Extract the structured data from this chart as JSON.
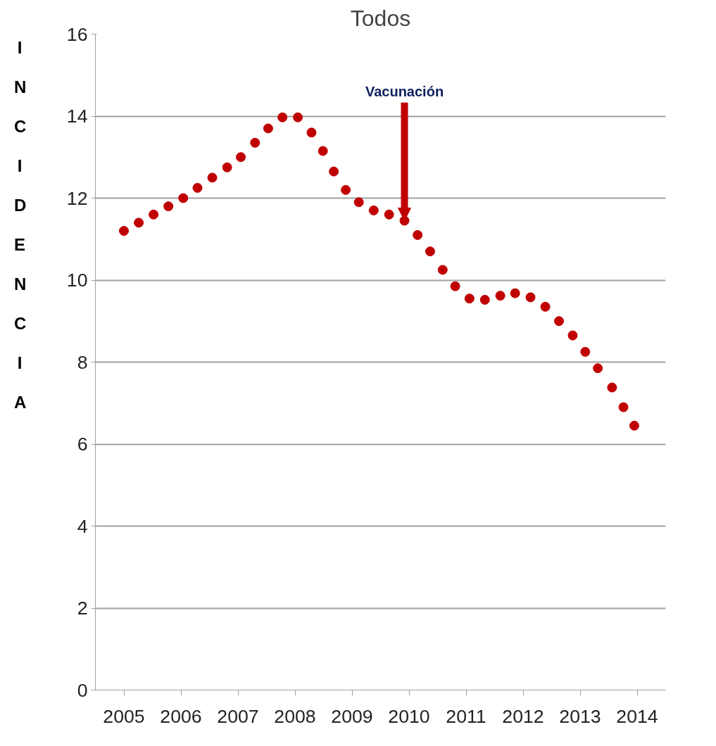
{
  "chart_data": {
    "type": "scatter",
    "title": "Todos",
    "ylabel": "INCIDENCIA",
    "x": [
      2005.0,
      2005.26,
      2005.52,
      2005.78,
      2006.04,
      2006.29,
      2006.55,
      2006.81,
      2007.05,
      2007.3,
      2007.53,
      2007.78,
      2008.05,
      2008.29,
      2008.49,
      2008.68,
      2008.89,
      2009.12,
      2009.38,
      2009.65,
      2009.92,
      2010.15,
      2010.37,
      2010.59,
      2010.81,
      2011.06,
      2011.33,
      2011.6,
      2011.86,
      2012.13,
      2012.39,
      2012.63,
      2012.87,
      2013.09,
      2013.31,
      2013.56,
      2013.76,
      2013.95
    ],
    "series": [
      {
        "color": "#c00000",
        "values": [
          11.2,
          11.4,
          11.6,
          11.8,
          12.0,
          12.25,
          12.5,
          12.75,
          13.0,
          13.35,
          13.7,
          13.97,
          13.97,
          13.6,
          13.15,
          12.65,
          12.2,
          11.9,
          11.7,
          11.6,
          11.45,
          11.1,
          10.7,
          10.25,
          9.85,
          9.55,
          9.52,
          9.62,
          9.68,
          9.58,
          9.35,
          9.0,
          8.65,
          8.25,
          7.85,
          7.38,
          6.9,
          6.45
        ]
      }
    ],
    "xlim": [
      2004.5,
      2014.5
    ],
    "ylim": [
      0,
      16
    ],
    "xticks": [
      2005,
      2006,
      2007,
      2008,
      2009,
      2010,
      2011,
      2012,
      2013,
      2014
    ],
    "yticks": [
      0,
      2,
      4,
      6,
      8,
      10,
      12,
      14,
      16
    ],
    "grid": "y",
    "marker": "circle",
    "annotations": [
      {
        "text": "Vacunación",
        "x": 2009.92,
        "y": 11.45
      }
    ]
  }
}
